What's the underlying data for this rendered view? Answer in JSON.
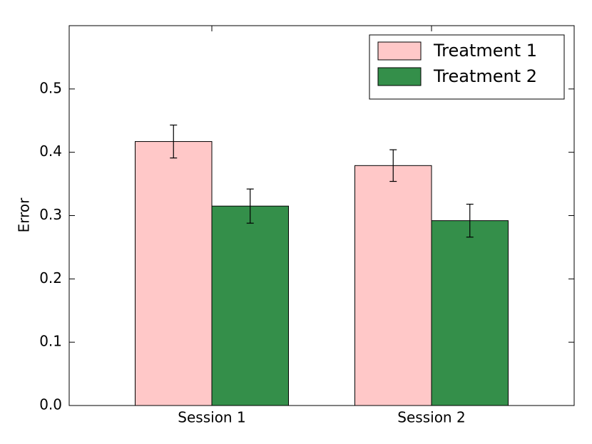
{
  "chart_data": {
    "type": "bar",
    "y_label": "Error",
    "categories": [
      "Session 1",
      "Session 2"
    ],
    "series": [
      {
        "name": "Treatment 1",
        "color": "#ffc8c8",
        "values": [
          0.417,
          0.379
        ],
        "errors": [
          0.026,
          0.025
        ]
      },
      {
        "name": "Treatment 2",
        "color": "#348f4a",
        "values": [
          0.315,
          0.292
        ],
        "errors": [
          0.027,
          0.026
        ]
      }
    ],
    "ylim": [
      0,
      0.6
    ],
    "yticks": [
      {
        "value": 0,
        "label": "0.0"
      },
      0.1,
      0.2,
      0.3,
      0.4,
      0.5
    ],
    "legend": "upper right"
  }
}
